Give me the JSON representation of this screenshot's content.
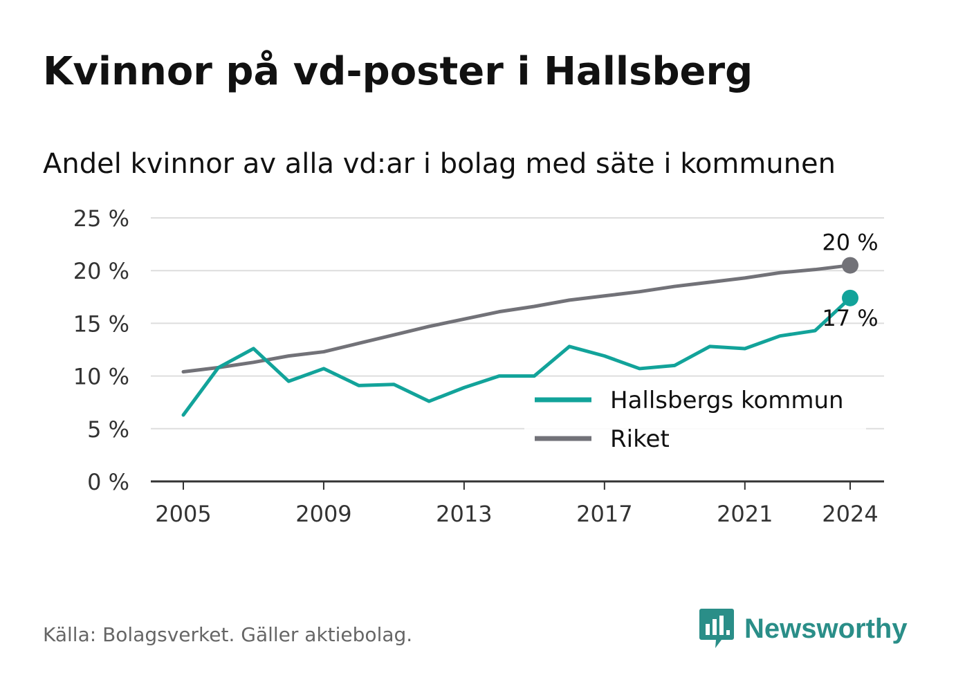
{
  "title": "Kvinnor på vd-poster i Hallsberg",
  "subtitle": "Andel kvinnor av alla vd:ar i bolag med säte i kommunen",
  "source": "Källa: Bolagsverket. Gäller aktiebolag.",
  "brand": {
    "name": "Newsworthy",
    "icon": "newsworthy-logo-icon",
    "color": "#2a8e88"
  },
  "chart_data": {
    "type": "line",
    "x": [
      2005,
      2006,
      2007,
      2008,
      2009,
      2010,
      2011,
      2012,
      2013,
      2014,
      2015,
      2016,
      2017,
      2018,
      2019,
      2020,
      2021,
      2022,
      2023,
      2024
    ],
    "x_ticks": [
      2005,
      2009,
      2013,
      2017,
      2021,
      2024
    ],
    "y_ticks": [
      {
        "value": 0,
        "label": "0 %"
      },
      {
        "value": 5,
        "label": "5 %"
      },
      {
        "value": 10,
        "label": "10 %"
      },
      {
        "value": 15,
        "label": "15 %"
      },
      {
        "value": 20,
        "label": "20 %"
      },
      {
        "value": 25,
        "label": "25 %"
      }
    ],
    "ylim": [
      0,
      25
    ],
    "grid": "horizontal",
    "legend_position": "bottom-right",
    "series": [
      {
        "name": "Hallsbergs kommun",
        "color": "#12a39a",
        "values": [
          6.3,
          10.8,
          12.6,
          9.5,
          10.7,
          9.1,
          9.2,
          7.6,
          8.9,
          10.0,
          10.0,
          12.8,
          11.9,
          10.7,
          11.0,
          12.8,
          12.6,
          13.8,
          14.3,
          17.4
        ],
        "end_label": "17 %"
      },
      {
        "name": "Riket",
        "color": "#727278",
        "values": [
          10.4,
          10.8,
          11.3,
          11.9,
          12.3,
          13.1,
          13.9,
          14.7,
          15.4,
          16.1,
          16.6,
          17.2,
          17.6,
          18.0,
          18.5,
          18.9,
          19.3,
          19.8,
          20.1,
          20.5
        ],
        "end_label": "20 %"
      }
    ]
  }
}
